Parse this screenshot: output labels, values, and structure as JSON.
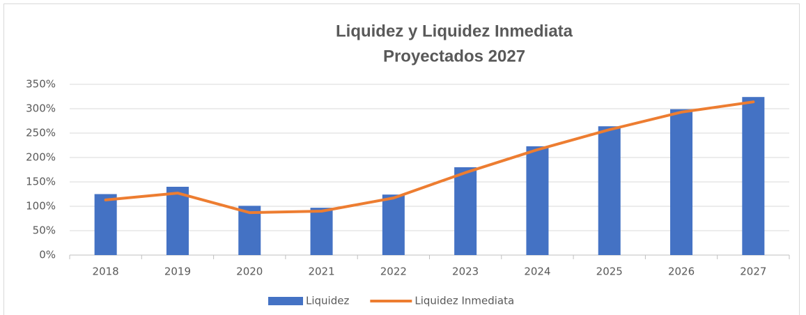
{
  "chart_data": {
    "type": "bar",
    "title": [
      "Liquidez y Liquidez Inmediata",
      "Proyectados 2027"
    ],
    "categories": [
      "2018",
      "2019",
      "2020",
      "2021",
      "2022",
      "2023",
      "2024",
      "2025",
      "2026",
      "2027"
    ],
    "series": [
      {
        "name": "Liquidez",
        "type": "bar",
        "color": "#4472c4",
        "values": [
          125,
          140,
          101,
          97,
          124,
          180,
          223,
          264,
          299,
          324
        ]
      },
      {
        "name": "Liquidez Inmediata",
        "type": "line",
        "color": "#ed7d31",
        "values": [
          113,
          127,
          87,
          90,
          117,
          169,
          216,
          257,
          293,
          314
        ]
      }
    ],
    "ylim": [
      0,
      350
    ],
    "yticks": [
      {
        "value": 0,
        "label": "0%"
      },
      {
        "value": 50,
        "label": "50%"
      },
      {
        "value": 100,
        "label": "100%"
      },
      {
        "value": 150,
        "label": "150%"
      },
      {
        "value": 200,
        "label": "200%"
      },
      {
        "value": 250,
        "label": "250%"
      },
      {
        "value": 300,
        "label": "300%"
      },
      {
        "value": 350,
        "label": "350%"
      }
    ],
    "grid": true,
    "legend": "bottom"
  }
}
